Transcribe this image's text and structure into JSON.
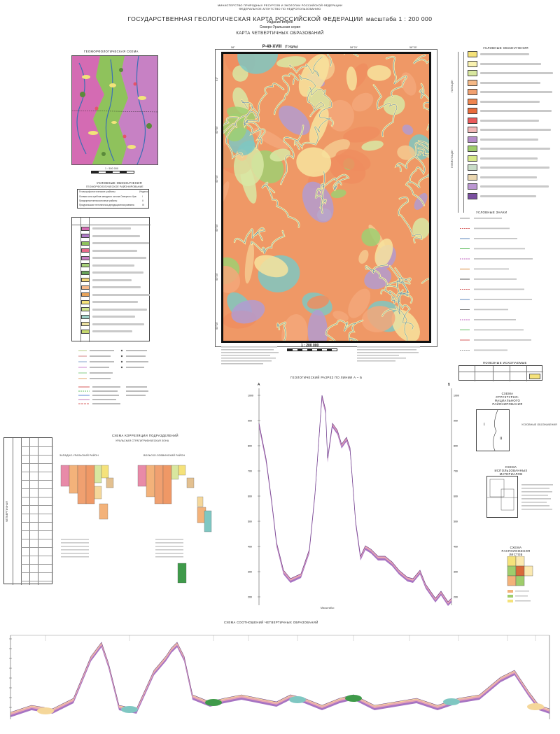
{
  "header": {
    "ministry": "МИНИСТЕРСТВО ПРИРОДНЫХ РЕСУРСОВ И ЭКОЛОГИИ РОССИЙСКОЙ ФЕДЕРАЦИИ",
    "agency": "ФЕДЕРАЛЬНОЕ АГЕНТСТВО ПО НЕДРОПОЛЬЗОВАНИЮ",
    "title": "ГОСУДАРСТВЕННАЯ ГЕОЛОГИЧЕСКАЯ КАРТА РОССИЙСКОЙ ФЕДЕРАЦИИ",
    "scale_title": "масштаба 1 : 200 000",
    "edition": "Издание второе",
    "series": "Северо-Уральская серия",
    "map_name": "КАРТА ЧЕТВЕРТИЧНЫХ ОБРАЗОВАНИЙ",
    "sheet": "P-40-XVIII",
    "sheet_name": "(Гоголь)"
  },
  "geomorph": {
    "title": "ГЕОМОРФОЛОГИЧЕСКАЯ СХЕМА",
    "scale": "1 : 500 000",
    "legend_title": "УСЛОВНЫЕ ОБОЗНАЧЕНИЯ",
    "legend_subtitle": "ГЕОМОРФОЛОГИЧЕСКОЕ РАЙОНИРОВАНИЕ",
    "table_header_1": "Геоморфологические районы",
    "table_header_2": "Индекс",
    "districts": [
      {
        "name": "Осевая зона хребтов западного склона Северного Урала",
        "index": "I"
      },
      {
        "name": "Предгорные мелкосопочные районы",
        "index": "II"
      },
      {
        "name": "Приуральская тектонически-денудационная равнина",
        "index": "III"
      }
    ]
  },
  "map": {
    "scale": "1 : 200 000",
    "left_labels": [
      "61°",
      "60°50'",
      "60°40'",
      "60°30'",
      "60°20'",
      "60°10'"
    ],
    "top_labels": [
      "58°",
      "58°10'",
      "58°20'",
      "58°30'"
    ],
    "legend_colors": [
      "#f3a77a",
      "#ee8d5f",
      "#f5c98f",
      "#f7e39d",
      "#d8e7a4",
      "#b39bd0",
      "#7fc7c2",
      "#9fcf72"
    ]
  },
  "right_legend": {
    "title": "УСЛОВНЫЕ ОБОЗНАЧЕНИЯ",
    "section_1": "ГОЛОЦЕН",
    "section_2": "ПЛЕЙСТОЦЕН",
    "section_3": "УСЛОВНЫЕ ЗНАКИ",
    "colors": [
      "#f5e27a",
      "#f9f2b0",
      "#d8e79f",
      "#f5b987",
      "#f0a070",
      "#ee8550",
      "#e96b3b",
      "#e95a5a",
      "#f2b8b8",
      "#b48bc9",
      "#9fcd6c",
      "#d7e98a",
      "#c8dcc7",
      "#ead6b0",
      "#bb97d2",
      "#7a4fa0"
    ]
  },
  "section": {
    "title": "ГЕОЛОГИЧЕСКИЙ РАЗРЕЗ ПО ЛИНИИ А – Б",
    "left_axis": [
      "1000",
      "900",
      "800",
      "700",
      "600",
      "500",
      "400",
      "300",
      "200"
    ],
    "end_a": "А",
    "end_b": "Б",
    "scale_note": "Масштабы:"
  },
  "correlation": {
    "title": "СХЕМА КОРРЕЛЯЦИИ ПОДРАЗДЕЛЕНИЙ",
    "subtitle": "УРАЛЬСКАЯ СТРАТИГРАФИЧЕСКАЯ ЗОНА",
    "zone_1": "ЗАПАДНО-УРАЛЬСКИЙ РАЙОН",
    "zone_2": "ВОЛЬСКО-ЛОБВИНСКИЙ РАЙОН",
    "system_label": "ЧЕТВЕРТИЧНАЯ"
  },
  "ratio_scheme": {
    "title": "СХЕМА СООТНОШЕНИЙ ЧЕТВЕРТИЧНЫХ ОБРАЗОВАНИЙ"
  },
  "right_schemes": {
    "structure_title": "СХЕМА СТРУКТУРНО-ФАЦИАЛЬНОГО РАЙОНИРОВАНИЯ",
    "structure_legend": "УСЛОВНЫЕ ОБОЗНАЧЕНИЯ",
    "use_title": "СХЕМА ИСПОЛЬЗОВАННЫХ МАТЕРИАЛОВ",
    "location_title": "СХЕМА РАСПОЛОЖЕНИЯ ЛИСТОВ"
  },
  "minerals": {
    "title": "ПОЛЕЗНЫЕ ИСКОПАЕМЫЕ"
  }
}
